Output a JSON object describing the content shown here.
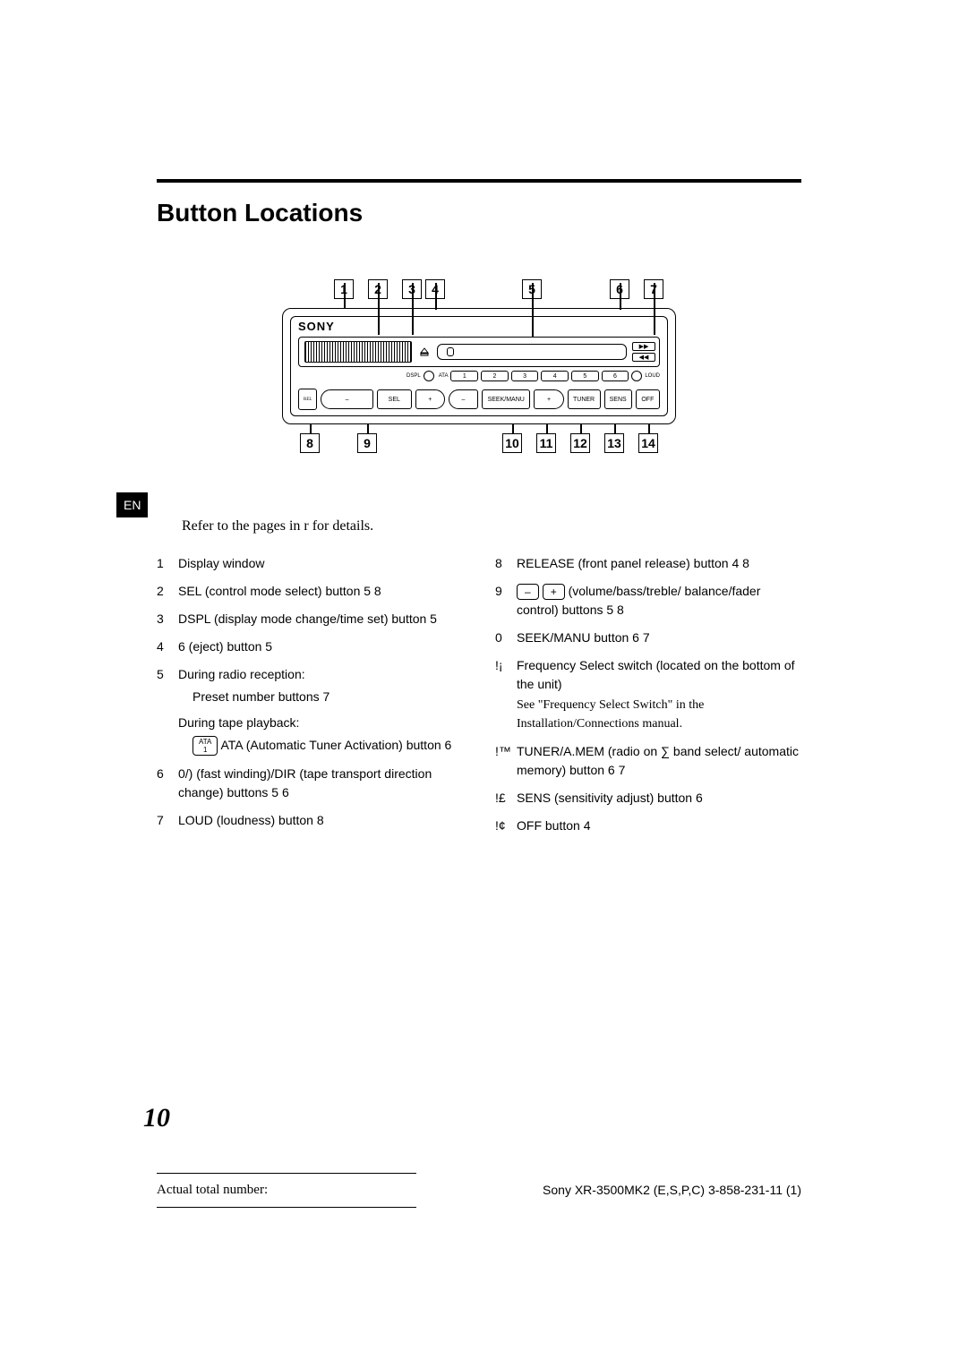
{
  "title": "Button Locations",
  "lang_tab": "EN",
  "ref_line": "Refer to the pages in r for details.",
  "diagram": {
    "brand": "SONY",
    "top_callouts": [
      "1",
      "2",
      "3",
      "4",
      "5",
      "6",
      "7"
    ],
    "bottom_callouts": [
      "8",
      "9",
      "10",
      "11",
      "12",
      "13",
      "14"
    ],
    "preset_nums": [
      "1",
      "2",
      "3",
      "4",
      "5",
      "6"
    ],
    "labels": {
      "dspl": "DSPL",
      "ata": "ATA",
      "loud": "LOUD",
      "release": "RELEASE",
      "sel": "SEL",
      "seek": "SEEK/MANU",
      "tuner": "TUNER",
      "amem": "A.MEM",
      "sens": "SENS",
      "off": "OFF",
      "minus": "–",
      "plus": "+",
      "ff": "▶▶",
      "rw": "◀◀"
    }
  },
  "left_items": [
    {
      "n": "1",
      "t": "Display window"
    },
    {
      "n": "2",
      "t": "SEL (control mode select) button  5 8"
    },
    {
      "n": "3",
      "t": "DSPL (display mode change/time set) button  5"
    },
    {
      "n": "4",
      "t": "6 (eject) button  5"
    },
    {
      "n": "5",
      "t": "During radio reception:",
      "sub1": "Preset number buttons  7",
      "sub2": "During tape playback:",
      "sub3": " ATA (Automatic Tuner Activation) button  6",
      "ata": true
    },
    {
      "n": "6",
      "t": "0/) (fast winding)/DIR (tape transport direction change) buttons 5  6"
    },
    {
      "n": "7",
      "t": "LOUD (loudness) button  8"
    }
  ],
  "right_items": [
    {
      "n": "8",
      "t": "RELEASE (front panel release) button 4  8"
    },
    {
      "n": "9",
      "pm": true,
      "t": " (volume/bass/treble/ balance/fader control) buttons  5 8"
    },
    {
      "n": "0",
      "t": "SEEK/MANU button  6 7"
    },
    {
      "n": "!¡",
      "t": "Frequency Select switch (located on the bottom of the unit)",
      "note": "See \"Frequency Select Switch\" in the Installation/Connections manual."
    },
    {
      "n": "!™",
      "t": "TUNER/A.MEM (radio on ∑ band select/ automatic memory) button  6 7"
    },
    {
      "n": "!£",
      "t": "SENS (sensitivity adjust) button  6"
    },
    {
      "n": "!¢",
      "t": "OFF button  4"
    }
  ],
  "page_number": "10",
  "footer_left": "Actual total number:",
  "footer_right": "Sony XR-3500MK2 (E,S,P,C)  3-858-231-11 (1)"
}
